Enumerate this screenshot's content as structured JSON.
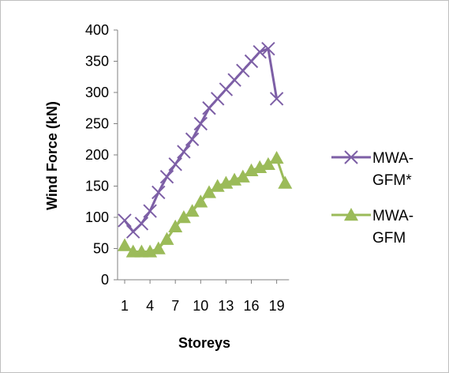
{
  "chart_data": {
    "type": "line",
    "title": "",
    "xlabel": "Storeys",
    "ylabel": "Wind Force (kN)",
    "ylim": [
      0,
      400
    ],
    "yticks": [
      0,
      50,
      100,
      150,
      200,
      250,
      300,
      350,
      400
    ],
    "x": [
      1,
      2,
      3,
      4,
      5,
      6,
      7,
      8,
      9,
      10,
      11,
      12,
      13,
      14,
      15,
      16,
      17,
      18,
      19,
      20
    ],
    "xtick_labels": [
      "1",
      "4",
      "7",
      "10",
      "13",
      "16",
      "19"
    ],
    "xtick_values": [
      1,
      4,
      7,
      10,
      13,
      16,
      19
    ],
    "grid": false,
    "legend": "right",
    "series": [
      {
        "name": "MWA-GFM*",
        "legend_lines": [
          "MWA-",
          "GFM*"
        ],
        "color": "#7d5fa6",
        "marker": "x",
        "values": [
          95,
          77,
          90,
          110,
          140,
          165,
          185,
          205,
          225,
          250,
          275,
          290,
          305,
          320,
          335,
          350,
          365,
          370,
          290,
          null
        ]
      },
      {
        "name": "MWA-GFM",
        "legend_lines": [
          "MWA-",
          "GFM"
        ],
        "color": "#9bbb59",
        "marker": "triangle",
        "values": [
          55,
          45,
          45,
          45,
          50,
          65,
          85,
          100,
          110,
          125,
          140,
          150,
          155,
          160,
          165,
          175,
          180,
          185,
          195,
          155
        ]
      }
    ]
  }
}
